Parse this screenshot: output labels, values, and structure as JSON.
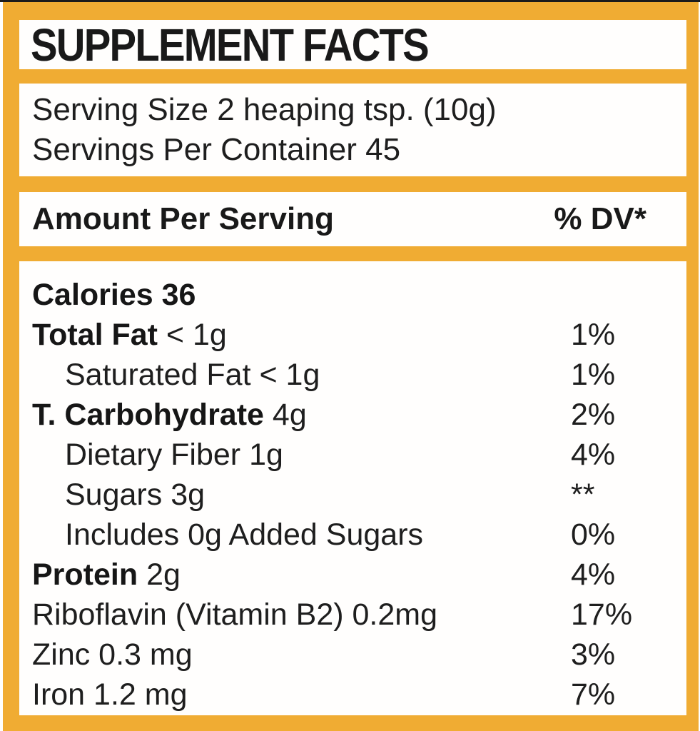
{
  "colors": {
    "accent": "#f0ac33",
    "text": "#1e1e1e",
    "box_background": "#fffefd",
    "top_edge_line": "#1b1b1b"
  },
  "header": {
    "title": "SUPPLEMENT FACTS"
  },
  "serving": {
    "serving_size": "Serving Size 2 heaping tsp. (10g)",
    "servings_per_container": "Servings Per Container 45"
  },
  "table_header": {
    "amount_per_serving": "Amount Per Serving",
    "daily_value": "% DV*"
  },
  "nutrients": [
    {
      "bold": "Calories 36",
      "rest": "",
      "dv": "",
      "indent": false
    },
    {
      "bold": "Total Fat",
      "rest": "< 1g",
      "dv": "1%",
      "indent": false
    },
    {
      "bold": "",
      "rest": "Saturated Fat < 1g",
      "dv": "1%",
      "indent": true
    },
    {
      "bold": "T. Carbohydrate",
      "rest": "4g",
      "dv": "2%",
      "indent": false
    },
    {
      "bold": "",
      "rest": "Dietary Fiber 1g",
      "dv": "4%",
      "indent": true
    },
    {
      "bold": "",
      "rest": "Sugars 3g",
      "dv": "**",
      "indent": true
    },
    {
      "bold": "",
      "rest": "Includes 0g Added Sugars",
      "dv": "0%",
      "indent": true
    },
    {
      "bold": "Protein",
      "rest": "2g",
      "dv": "4%",
      "indent": false
    },
    {
      "bold": "",
      "rest": "Riboflavin (Vitamin B2) 0.2mg",
      "dv": "17%",
      "indent": false
    },
    {
      "bold": "",
      "rest": "Zinc 0.3 mg",
      "dv": "3%",
      "indent": false
    },
    {
      "bold": "",
      "rest": "Iron 1.2 mg",
      "dv": "7%",
      "indent": false
    }
  ]
}
